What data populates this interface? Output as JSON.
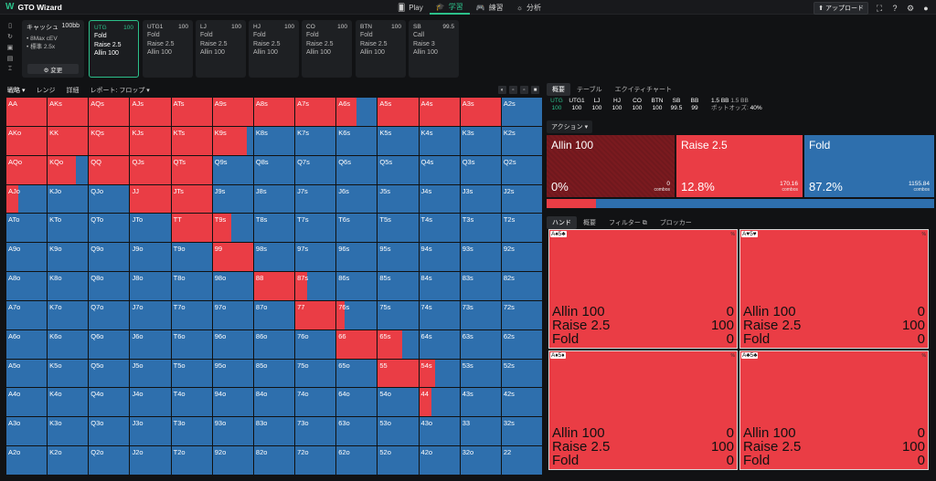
{
  "app": {
    "name": "GTO Wizard",
    "logo": "W"
  },
  "nav": [
    {
      "icon": "cards-icon",
      "glyph": "🂠",
      "label": "Play",
      "active": false
    },
    {
      "icon": "study-icon",
      "glyph": "🎓",
      "label": "学習",
      "active": true
    },
    {
      "icon": "gamepad-icon",
      "glyph": "🎮",
      "label": "練習",
      "active": false
    },
    {
      "icon": "analyze-icon",
      "glyph": "☼",
      "label": "分析",
      "active": false
    }
  ],
  "topright": {
    "upload": "⬆ アップロード"
  },
  "settings_card": {
    "title": "キャッシュ",
    "stake": "100bb",
    "lines": [
      "• 8Max cEV",
      "• 標準 2.5x"
    ],
    "button": "⚙ 変更"
  },
  "positions": [
    {
      "name": "UTG",
      "stack": "100",
      "actions": [
        "Fold",
        "Raise 2.5",
        "Allin 100"
      ],
      "selected": true
    },
    {
      "name": "UTG1",
      "stack": "100",
      "actions": [
        "Fold",
        "Raise 2.5",
        "Allin 100"
      ]
    },
    {
      "name": "LJ",
      "stack": "100",
      "actions": [
        "Fold",
        "Raise 2.5",
        "Allin 100"
      ]
    },
    {
      "name": "HJ",
      "stack": "100",
      "actions": [
        "Fold",
        "Raise 2.5",
        "Allin 100"
      ]
    },
    {
      "name": "CO",
      "stack": "100",
      "actions": [
        "Fold",
        "Raise 2.5",
        "Allin 100"
      ]
    },
    {
      "name": "BTN",
      "stack": "100",
      "actions": [
        "Fold",
        "Raise 2.5",
        "Allin 100"
      ]
    },
    {
      "name": "SB",
      "stack": "99.5",
      "actions": [
        "Call",
        "Raise 3",
        "Allin 100"
      ]
    }
  ],
  "toolbar2": {
    "strategy": "戦略 ▾",
    "range": "レンジ",
    "detail": "詳細",
    "report": "レポート: フロップ ▾"
  },
  "grid": {
    "ranks": [
      "A",
      "K",
      "Q",
      "J",
      "T",
      "9",
      "8",
      "7",
      "6",
      "5",
      "4",
      "3",
      "2"
    ],
    "raise_fraction": [
      [
        1,
        1,
        1,
        1,
        1,
        1,
        1,
        1,
        0.5,
        1,
        1,
        1,
        0
      ],
      [
        1,
        1,
        1,
        1,
        1,
        0.85,
        0,
        0,
        0,
        0,
        0,
        0,
        0
      ],
      [
        1,
        0.7,
        1,
        1,
        1,
        0,
        0,
        0,
        0,
        0,
        0,
        0,
        0
      ],
      [
        0.3,
        0,
        0,
        1,
        1,
        0,
        0,
        0,
        0,
        0,
        0,
        0,
        0
      ],
      [
        0,
        0,
        0,
        0,
        1,
        0.45,
        0,
        0,
        0,
        0,
        0,
        0,
        0
      ],
      [
        0,
        0,
        0,
        0,
        0,
        1,
        0,
        0,
        0,
        0,
        0,
        0,
        0
      ],
      [
        0,
        0,
        0,
        0,
        0,
        0,
        1,
        0.3,
        0,
        0,
        0,
        0,
        0
      ],
      [
        0,
        0,
        0,
        0,
        0,
        0,
        0,
        1,
        0.2,
        0,
        0,
        0,
        0
      ],
      [
        0,
        0,
        0,
        0,
        0,
        0,
        0,
        0,
        1,
        0.6,
        0,
        0,
        0
      ],
      [
        0,
        0,
        0,
        0,
        0,
        0,
        0,
        0,
        0,
        1,
        0.4,
        0,
        0
      ],
      [
        0,
        0,
        0,
        0,
        0,
        0,
        0,
        0,
        0,
        0,
        0.3,
        0,
        0
      ],
      [
        0,
        0,
        0,
        0,
        0,
        0,
        0,
        0,
        0,
        0,
        0,
        0,
        0
      ],
      [
        0,
        0,
        0,
        0,
        0,
        0,
        0,
        0,
        0,
        0,
        0,
        0,
        0
      ]
    ]
  },
  "colors": {
    "raise": "#ea3d45",
    "fold": "#2e6fad",
    "allin": "#7a1a1f"
  },
  "right": {
    "tabs": [
      "概要",
      "テーブル",
      "エクイティチャート"
    ],
    "stacks": [
      {
        "p": "UTG",
        "s": "100"
      },
      {
        "p": "UTG1",
        "s": "100"
      },
      {
        "p": "LJ",
        "s": "100"
      },
      {
        "p": "HJ",
        "s": "100"
      },
      {
        "p": "CO",
        "s": "100"
      },
      {
        "p": "BTN",
        "s": "100"
      },
      {
        "p": "SB",
        "s": "99.5"
      },
      {
        "p": "BB",
        "s": "99"
      }
    ],
    "pot": {
      "l1": "1.5 BB",
      "l1b": "1.5 BB",
      "l2": "ポットオッズ:",
      "l2b": "40%"
    },
    "action_label": "アクション ▾",
    "actions": [
      {
        "name": "Allin 100",
        "pct": "0%",
        "combos": "0",
        "combos_label": "combos",
        "color": "#7a1a1f"
      },
      {
        "name": "Raise 2.5",
        "pct": "12.8%",
        "combos": "170.16",
        "combos_label": "combos",
        "color": "#ea3d45"
      },
      {
        "name": "Fold",
        "pct": "87.2%",
        "combos": "1155.84",
        "combos_label": "combos",
        "color": "#2e6fad"
      }
    ],
    "bar_raise_fraction": 0.128,
    "hand_tabs": [
      "ハンド",
      "概要",
      "フィルター ⧉",
      "ブロッカー"
    ],
    "hands": [
      {
        "card": "A♠5♣",
        "pct": "%",
        "rows": [
          [
            "Allin 100",
            "0"
          ],
          [
            "Raise 2.5",
            "100"
          ],
          [
            "Fold",
            "0"
          ]
        ]
      },
      {
        "card": "A♥5♥",
        "pct": "%",
        "rows": [
          [
            "Allin 100",
            "0"
          ],
          [
            "Raise 2.5",
            "100"
          ],
          [
            "Fold",
            "0"
          ]
        ]
      },
      {
        "card": "A♦5♦",
        "pct": "%",
        "rows": [
          [
            "Allin 100",
            "0"
          ],
          [
            "Raise 2.5",
            "100"
          ],
          [
            "Fold",
            "0"
          ]
        ]
      },
      {
        "card": "A♣5♣",
        "pct": "%",
        "rows": [
          [
            "Allin 100",
            "0"
          ],
          [
            "Raise 2.5",
            "100"
          ],
          [
            "Fold",
            "0"
          ]
        ]
      }
    ]
  }
}
